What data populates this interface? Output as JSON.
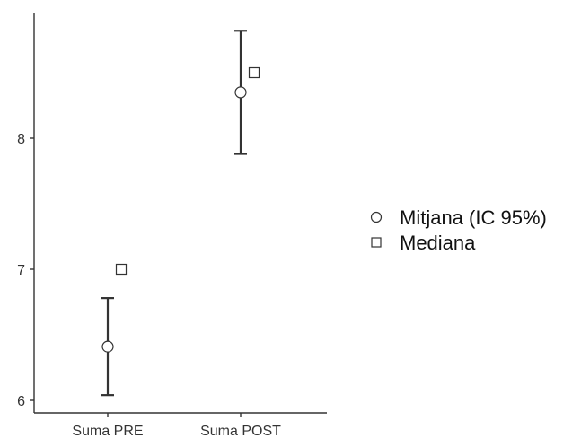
{
  "chart_data": {
    "type": "scatter",
    "title": "",
    "xlabel": "",
    "ylabel": "",
    "categories": [
      "Suma PRE",
      "Suma POST"
    ],
    "yticks": [
      6,
      7,
      8
    ],
    "ylim": [
      5.9,
      8.95
    ],
    "grid": false,
    "legend_position": "right",
    "series": [
      {
        "name": "Mitjana (IC 95%)",
        "marker": "circle",
        "values": [
          6.41,
          8.35
        ],
        "ci_lower": [
          6.04,
          7.88
        ],
        "ci_upper": [
          6.78,
          8.82
        ]
      },
      {
        "name": "Mediana",
        "marker": "square",
        "values": [
          7.0,
          8.5
        ]
      }
    ],
    "colors": {
      "axis": "#333333",
      "errorbar": "#333333",
      "marker_fill": "#ffffff",
      "marker_stroke": "#333333"
    }
  }
}
